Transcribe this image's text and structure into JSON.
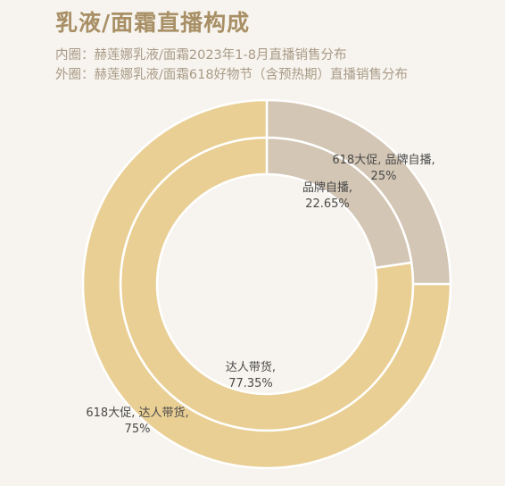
{
  "title": "乳液/面霜直播构成",
  "subtitle_inner": "内圈：赫莲娜乳液/面霜2023年1-8月直播销售分布",
  "subtitle_outer": "外圈：赫莲娜乳液/面霜618好物节（含预热期）直播销售分布",
  "colors": {
    "brand": "#d3c6b4",
    "kol": "#e9cf94",
    "background": "#f7f4ef",
    "title": "#a88f65"
  },
  "chart_data": [
    {
      "type": "pie",
      "ring": "inner",
      "categories": [
        "品牌自播",
        "达人带货"
      ],
      "values": [
        22.65,
        77.35
      ],
      "labels": [
        {
          "line1": "品牌自播,",
          "line2": "22.65%"
        },
        {
          "line1": "达人带货,",
          "line2": "77.35%"
        }
      ]
    },
    {
      "type": "pie",
      "ring": "outer",
      "categories": [
        "618大促, 品牌自播",
        "618大促, 达人带货"
      ],
      "values": [
        25,
        75
      ],
      "labels": [
        {
          "line1": "618大促, 品牌自播,",
          "line2": "25%"
        },
        {
          "line1": "618大促, 达人带货,",
          "line2": "75%"
        }
      ]
    }
  ]
}
